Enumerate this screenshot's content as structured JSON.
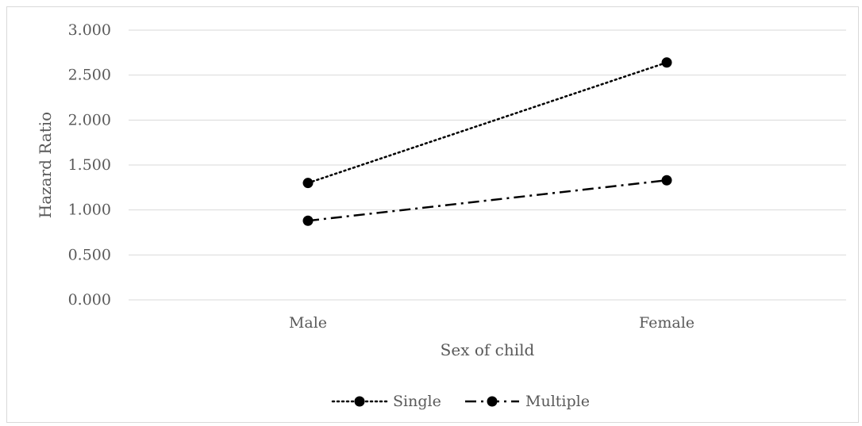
{
  "chart_data": {
    "type": "line",
    "categories": [
      "Male",
      "Female"
    ],
    "series": [
      {
        "name": "Single",
        "values": [
          1.3,
          2.64
        ],
        "line_style": "dotted",
        "color": "#000000"
      },
      {
        "name": "Multiple",
        "values": [
          0.88,
          1.33
        ],
        "line_style": "dash-dot",
        "color": "#000000"
      }
    ],
    "xlabel": "Sex of child",
    "ylabel": "Hazard Ratio",
    "ylim": [
      0,
      3
    ],
    "yticks": [
      "0.000",
      "0.500",
      "1.000",
      "1.500",
      "2.000",
      "2.500",
      "3.000"
    ],
    "grid": true,
    "legend_position": "bottom"
  }
}
